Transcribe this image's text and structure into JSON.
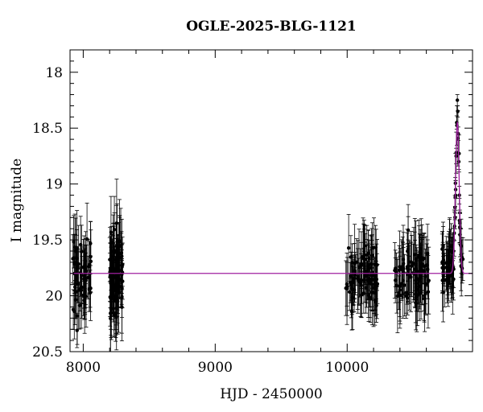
{
  "chart_data": {
    "type": "scatter",
    "title": "OGLE-2025-BLG-1121",
    "xlabel": "HJD - 2450000",
    "ylabel": "I magnitude",
    "xlim": [
      7900,
      10950
    ],
    "ylim": [
      20.5,
      17.8
    ],
    "y_inverted": true,
    "grid": false,
    "x_ticks": [
      8000,
      9000,
      10000
    ],
    "x_tick_labels": [
      "8000",
      "9000",
      "10000"
    ],
    "y_ticks": [
      18,
      18.5,
      19,
      19.5,
      20,
      20.5
    ],
    "y_tick_labels": [
      "18",
      "18.5",
      "19",
      "19.5",
      "20",
      "20.5"
    ],
    "colors": {
      "data": "#000000",
      "model": "#a020a0"
    },
    "series": [
      {
        "kind": "points_with_errorbars",
        "seasons": [
          {
            "x_range": [
              7920,
              8060
            ],
            "n": 60,
            "mag_mean": 19.82,
            "mag_scatter": 0.17,
            "err_range": [
              0.15,
              0.35
            ]
          },
          {
            "x_range": [
              8200,
              8300
            ],
            "n": 90,
            "mag_mean": 19.84,
            "mag_scatter": 0.18,
            "err_range": [
              0.15,
              0.4
            ]
          },
          {
            "x_range": [
              9990,
              10230
            ],
            "n": 90,
            "mag_mean": 19.82,
            "mag_scatter": 0.13,
            "err_range": [
              0.15,
              0.35
            ]
          },
          {
            "x_range": [
              10360,
              10620
            ],
            "n": 90,
            "mag_mean": 19.82,
            "mag_scatter": 0.13,
            "err_range": [
              0.15,
              0.35
            ]
          },
          {
            "x_range": [
              10720,
              10880
            ],
            "n": 70,
            "mag_mean": 19.74,
            "mag_scatter": 0.1,
            "err_range": [
              0.1,
              0.3
            ],
            "follows_model": true
          }
        ],
        "peak_points": [
          {
            "x": 10835,
            "y": 18.25,
            "err": 0.05
          },
          {
            "x": 10838,
            "y": 18.35,
            "err": 0.05
          },
          {
            "x": 10830,
            "y": 18.45,
            "err": 0.06
          },
          {
            "x": 10842,
            "y": 18.55,
            "err": 0.06
          },
          {
            "x": 10826,
            "y": 18.75,
            "err": 0.07
          },
          {
            "x": 10846,
            "y": 18.8,
            "err": 0.07
          },
          {
            "x": 10822,
            "y": 19.05,
            "err": 0.08
          },
          {
            "x": 10850,
            "y": 19.1,
            "err": 0.08
          },
          {
            "x": 10818,
            "y": 19.3,
            "err": 0.1
          },
          {
            "x": 10854,
            "y": 19.35,
            "err": 0.1
          }
        ]
      },
      {
        "kind": "model_curve",
        "baseline_mag": 19.8,
        "t0": 10835,
        "peak_mag": 18.45,
        "tE": 14,
        "x_range": [
          7900,
          10950
        ]
      }
    ]
  }
}
